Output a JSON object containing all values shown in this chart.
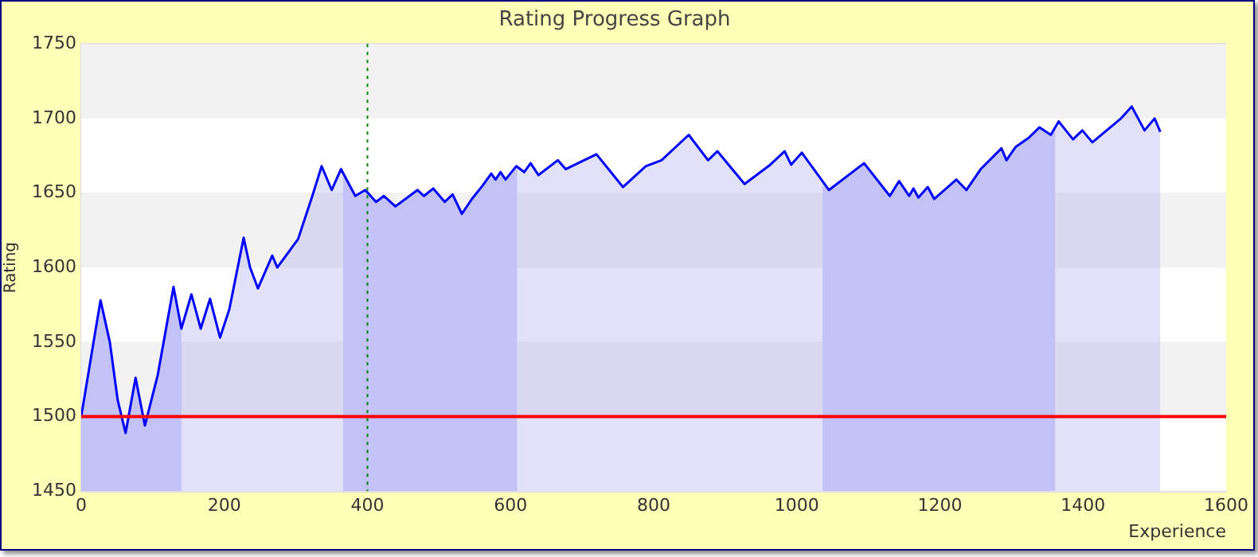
{
  "chart_data": {
    "type": "area",
    "title": "Rating Progress Graph",
    "xlabel": "Experience",
    "ylabel": "Rating",
    "x": [
      0,
      20,
      27,
      40,
      51,
      62,
      76,
      89,
      107,
      129,
      140,
      154,
      167,
      180,
      194,
      207,
      227,
      236,
      247,
      267,
      274,
      303,
      323,
      336,
      350,
      363,
      383,
      397,
      412,
      423,
      439,
      470,
      479,
      492,
      508,
      519,
      532,
      546,
      561,
      573,
      579,
      586,
      593,
      608,
      619,
      628,
      639,
      666,
      677,
      720,
      757,
      789,
      811,
      849,
      876,
      889,
      927,
      963,
      983,
      992,
      1007,
      1045,
      1094,
      1130,
      1143,
      1157,
      1163,
      1170,
      1183,
      1192,
      1223,
      1237,
      1257,
      1286,
      1293,
      1306,
      1324,
      1339,
      1355,
      1366,
      1386,
      1399,
      1413,
      1453,
      1468,
      1486,
      1500,
      1508
    ],
    "series": [
      {
        "color": "#0000ff",
        "values": [
          1500,
          1558,
          1578,
          1550,
          1511,
          1489,
          1526,
          1494,
          1528,
          1587,
          1559,
          1582,
          1559,
          1579,
          1553,
          1572,
          1620,
          1600,
          1586,
          1608,
          1600,
          1619,
          1648,
          1668,
          1652,
          1666,
          1648,
          1652,
          1644,
          1648,
          1641,
          1652,
          1648,
          1653,
          1644,
          1649,
          1636,
          1646,
          1655,
          1663,
          1659,
          1664,
          1659,
          1668,
          1664,
          1670,
          1662,
          1672,
          1666,
          1676,
          1654,
          1668,
          1672,
          1689,
          1672,
          1678,
          1656,
          1669,
          1678,
          1669,
          1677,
          1652,
          1670,
          1648,
          1658,
          1648,
          1653,
          1647,
          1654,
          1646,
          1659,
          1652,
          1666,
          1680,
          1672,
          1681,
          1687,
          1694,
          1689,
          1698,
          1686,
          1692,
          1684,
          1700,
          1708,
          1692,
          1700,
          1691
        ]
      }
    ],
    "xlim": [
      0,
      1600
    ],
    "xticks": [
      0,
      200,
      400,
      600,
      800,
      1000,
      1200,
      1400,
      1600
    ],
    "ylim": [
      1450,
      1750
    ],
    "yticks": [
      1450,
      1500,
      1550,
      1600,
      1650,
      1700,
      1750
    ],
    "grid": "y",
    "legend": false,
    "marker": "none",
    "line_style": "solid",
    "ref_lines": [
      {
        "axis": "y",
        "value": 1500,
        "color": "#ff0000",
        "line_style": "solid"
      },
      {
        "axis": "x",
        "value": 400,
        "color": "#008000",
        "line_style": "dotted"
      }
    ],
    "bands": [
      {
        "axis": "x",
        "from": 0,
        "to": 140,
        "color": "#cfcff9"
      },
      {
        "axis": "x",
        "from": 366,
        "to": 609,
        "color": "#cfcff9"
      },
      {
        "axis": "x",
        "from": 1036,
        "to": 1361,
        "color": "#cfcff9"
      }
    ]
  }
}
